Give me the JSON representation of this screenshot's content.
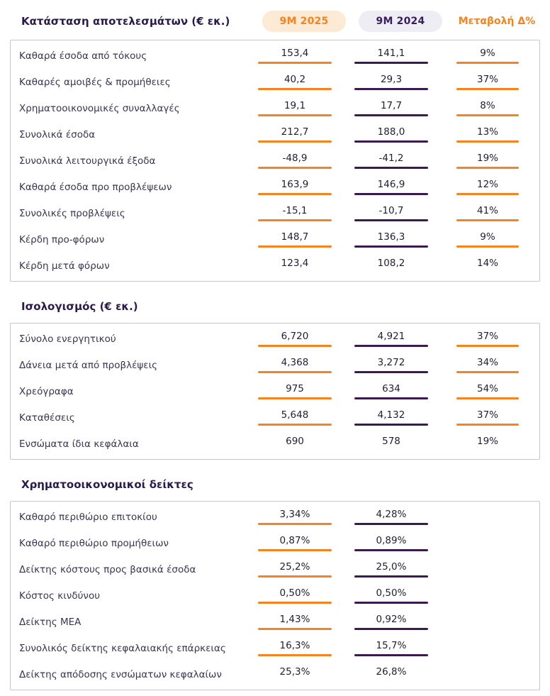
{
  "columns": {
    "c2025": "9M 2025",
    "c2024": "9M 2024",
    "change": "Μεταβολή Δ%"
  },
  "colors": {
    "orange": "#F5831F",
    "dark_purple": "#3A1A50",
    "pill_2025_bg": "#FCEAD4",
    "pill_2024_bg": "#EEEDF3",
    "box_border": "#C7C7C7"
  },
  "sections": [
    {
      "title": "Κατάσταση αποτελεσμάτων (€ εκ.)",
      "has_change": true,
      "rows": [
        {
          "label": "Καθαρά έσοδα από τόκους",
          "v2025": "153,4",
          "v2024": "141,1",
          "change": "9%"
        },
        {
          "label": "Καθαρές αμοιβές & προμήθειες",
          "v2025": "40,2",
          "v2024": "29,3",
          "change": "37%"
        },
        {
          "label": "Χρηματοοικονομικές συναλλαγές",
          "v2025": "19,1",
          "v2024": "17,7",
          "change": "8%"
        },
        {
          "label": "Συνολικά έσοδα",
          "v2025": "212,7",
          "v2024": "188,0",
          "change": "13%"
        },
        {
          "label": "Συνολικά λειτουργικά έξοδα",
          "v2025": "-48,9",
          "v2024": "-41,2",
          "change": "19%"
        },
        {
          "label": "Καθαρά έσοδα προ προβλέψεων",
          "v2025": "163,9",
          "v2024": "146,9",
          "change": "12%"
        },
        {
          "label": "Συνολικές προβλέψεις",
          "v2025": "-15,1",
          "v2024": "-10,7",
          "change": "41%"
        },
        {
          "label": "Κέρδη προ-φόρων",
          "v2025": "148,7",
          "v2024": "136,3",
          "change": "9%"
        },
        {
          "label": "Κέρδη μετά φόρων",
          "v2025": "123,4",
          "v2024": "108,2",
          "change": "14%"
        }
      ]
    },
    {
      "title": "Ισολογισμός (€ εκ.)",
      "has_change": true,
      "rows": [
        {
          "label": "Σύνολο ενεργητικού",
          "v2025": "6,720",
          "v2024": "4,921",
          "change": "37%"
        },
        {
          "label": "Δάνεια μετά από προβλέψεις",
          "v2025": "4,368",
          "v2024": "3,272",
          "change": "34%"
        },
        {
          "label": "Χρεόγραφα",
          "v2025": "975",
          "v2024": "634",
          "change": "54%"
        },
        {
          "label": "Καταθέσεις",
          "v2025": "5,648",
          "v2024": "4,132",
          "change": "37%"
        },
        {
          "label": "Ενσώματα ίδια κεφάλαια",
          "v2025": "690",
          "v2024": "578",
          "change": "19%"
        }
      ]
    },
    {
      "title": "Χρηματοοικονομικοί δείκτες",
      "has_change": false,
      "rows": [
        {
          "label": "Καθαρό περιθώριο επιτοκίου",
          "v2025": "3,34%",
          "v2024": "4,28%"
        },
        {
          "label": "Καθαρό περιθώριο προμήθειων",
          "v2025": "0,87%",
          "v2024": "0,89%"
        },
        {
          "label": "Δείκτης κόστους προς βασικά έσοδα",
          "v2025": "25,2%",
          "v2024": "25,0%"
        },
        {
          "label": "Κόστος κινδύνου",
          "v2025": "0,50%",
          "v2024": "0,50%"
        },
        {
          "label": "Δείκτης ΜΕΑ",
          "v2025": "1,43%",
          "v2024": "0,92%"
        },
        {
          "label": "Συνολικός δείκτης κεφαλαιακής επάρκειας",
          "v2025": "16,3%",
          "v2024": "15,7%"
        },
        {
          "label": "Δείκτης απόδοσης ενσώματων κεφαλαίων",
          "v2025": "25,3%",
          "v2024": "26,8%"
        }
      ]
    }
  ]
}
